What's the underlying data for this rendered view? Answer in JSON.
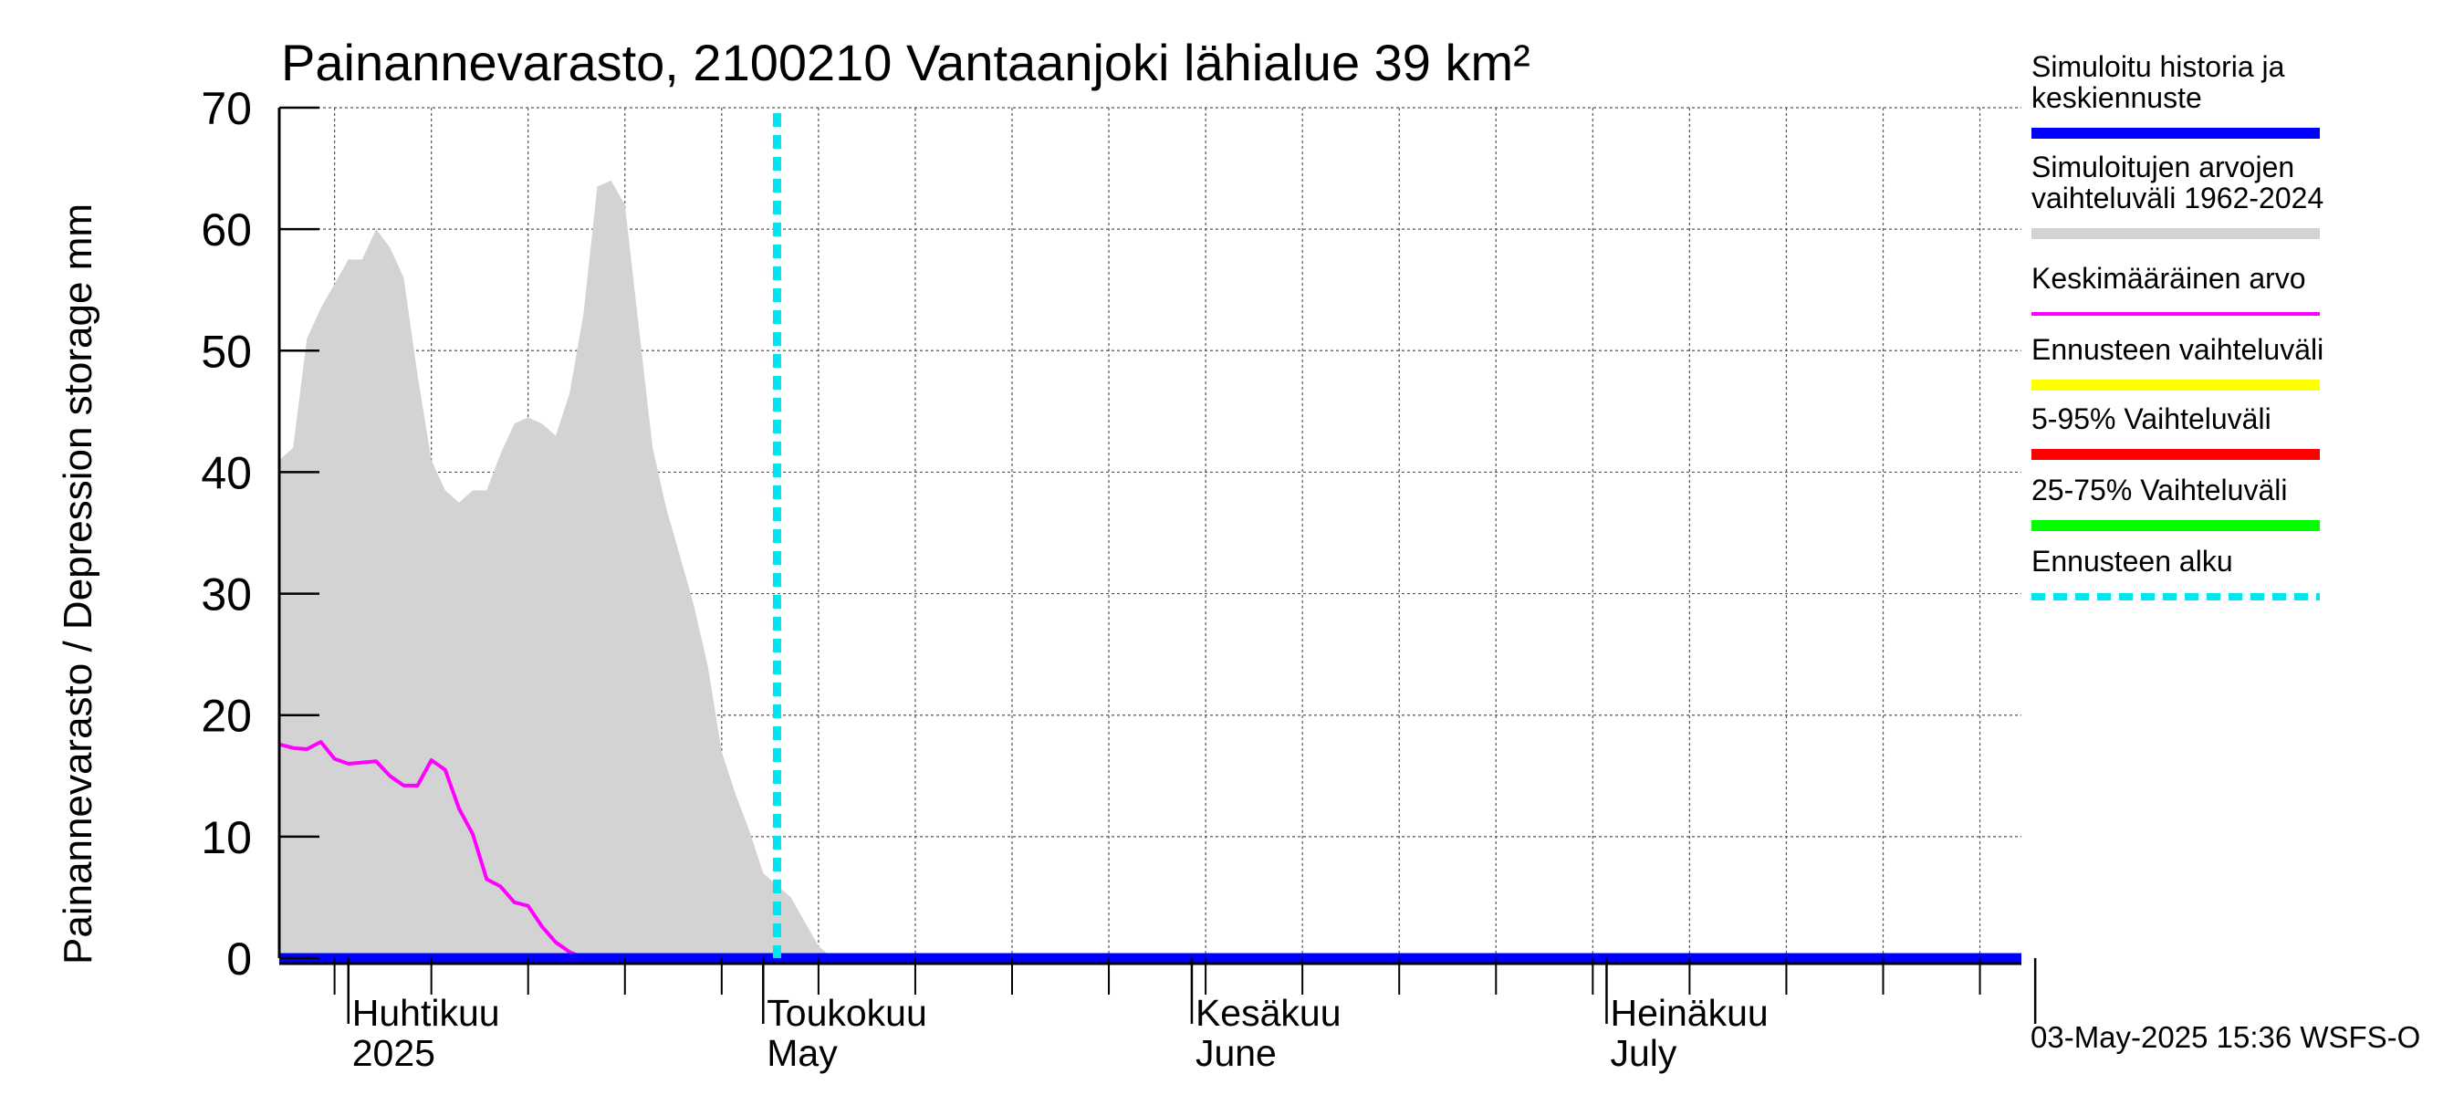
{
  "chart_data": {
    "type": "area",
    "title": "Painannevarasto, 2100210 Vantaanjoki lähialue 39 km²",
    "ylabel": "Painannevarasto / Depression storage    mm",
    "ylim": [
      0,
      70
    ],
    "yticks": [
      0,
      10,
      20,
      30,
      40,
      50,
      60,
      70
    ],
    "grid": true,
    "xlim": [
      "2025-03-27",
      "2025-07-31"
    ],
    "month_labels": [
      {
        "date": "2025-04-01",
        "fi": "Huhtikuu",
        "en": "2025"
      },
      {
        "date": "2025-05-01",
        "fi": "Toukokuu",
        "en": "May"
      },
      {
        "date": "2025-06-01",
        "fi": "Kesäkuu",
        "en": "June"
      },
      {
        "date": "2025-07-01",
        "fi": "Heinäkuu",
        "en": "July"
      }
    ],
    "forecast_start": "2025-05-02",
    "legend_position": "right",
    "legend": [
      {
        "label": "Simuloitu historia ja keskiennuste",
        "color": "#0000ff",
        "style": "solid"
      },
      {
        "label": "Simuloitujen arvojen vaihteluväli 1962-2024",
        "color": "#d3d3d3",
        "style": "solid"
      },
      {
        "label": "Keskimääräinen arvo",
        "color": "#ff00ff",
        "style": "thin"
      },
      {
        "label": "Ennusteen vaihteluväli",
        "color": "#ffff00",
        "style": "solid"
      },
      {
        "label": "5-95% Vaihteluväli",
        "color": "#ff0000",
        "style": "solid"
      },
      {
        "label": "25-75% Vaihteluväli",
        "color": "#00ff00",
        "style": "solid"
      },
      {
        "label": "Ennusteen alku",
        "color": "#00e5ee",
        "style": "dashed"
      }
    ],
    "series": [
      {
        "name": "Simuloitujen arvojen vaihteluväli 1962-2024",
        "kind": "band",
        "color": "#d3d3d3",
        "points": [
          [
            "2025-03-27",
            41
          ],
          [
            "2025-03-28",
            42
          ],
          [
            "2025-03-29",
            51
          ],
          [
            "2025-03-30",
            53.5
          ],
          [
            "2025-03-31",
            55.5
          ],
          [
            "2025-04-01",
            57.5
          ],
          [
            "2025-04-02",
            57.5
          ],
          [
            "2025-04-03",
            60
          ],
          [
            "2025-04-04",
            58.5
          ],
          [
            "2025-04-05",
            56
          ],
          [
            "2025-04-06",
            48
          ],
          [
            "2025-04-07",
            41
          ],
          [
            "2025-04-08",
            38.5
          ],
          [
            "2025-04-09",
            37.5
          ],
          [
            "2025-04-10",
            38.5
          ],
          [
            "2025-04-11",
            38.5
          ],
          [
            "2025-04-12",
            41.5
          ],
          [
            "2025-04-13",
            44
          ],
          [
            "2025-04-14",
            44.5
          ],
          [
            "2025-04-15",
            44
          ],
          [
            "2025-04-16",
            43
          ],
          [
            "2025-04-17",
            46.5
          ],
          [
            "2025-04-18",
            53
          ],
          [
            "2025-04-19",
            63.5
          ],
          [
            "2025-04-20",
            64
          ],
          [
            "2025-04-21",
            62
          ],
          [
            "2025-04-22",
            52
          ],
          [
            "2025-04-23",
            42
          ],
          [
            "2025-04-24",
            37
          ],
          [
            "2025-04-25",
            33
          ],
          [
            "2025-04-26",
            29
          ],
          [
            "2025-04-27",
            24
          ],
          [
            "2025-04-28",
            17
          ],
          [
            "2025-04-29",
            13.5
          ],
          [
            "2025-04-30",
            10.5
          ],
          [
            "2025-05-01",
            7
          ],
          [
            "2025-05-02",
            6
          ],
          [
            "2025-05-03",
            5
          ],
          [
            "2025-05-04",
            3
          ],
          [
            "2025-05-05",
            1
          ],
          [
            "2025-05-06",
            0
          ],
          [
            "2025-07-31",
            0
          ]
        ]
      },
      {
        "name": "Keskimääräinen arvo",
        "kind": "line",
        "color": "#ff00ff",
        "points": [
          [
            "2025-03-27",
            17.6
          ],
          [
            "2025-03-28",
            17.3
          ],
          [
            "2025-03-29",
            17.2
          ],
          [
            "2025-03-30",
            17.8
          ],
          [
            "2025-03-31",
            16.4
          ],
          [
            "2025-04-01",
            16
          ],
          [
            "2025-04-02",
            16.1
          ],
          [
            "2025-04-03",
            16.2
          ],
          [
            "2025-04-04",
            15
          ],
          [
            "2025-04-05",
            14.2
          ],
          [
            "2025-04-06",
            14.2
          ],
          [
            "2025-04-07",
            16.3
          ],
          [
            "2025-04-08",
            15.5
          ],
          [
            "2025-04-09",
            12.3
          ],
          [
            "2025-04-10",
            10.2
          ],
          [
            "2025-04-11",
            6.5
          ],
          [
            "2025-04-12",
            5.9
          ],
          [
            "2025-04-13",
            4.6
          ],
          [
            "2025-04-14",
            4.3
          ],
          [
            "2025-04-15",
            2.6
          ],
          [
            "2025-04-16",
            1.3
          ],
          [
            "2025-04-17",
            0.5
          ],
          [
            "2025-04-18",
            0
          ],
          [
            "2025-07-31",
            0
          ]
        ]
      },
      {
        "name": "Simuloitu historia ja keskiennuste",
        "kind": "line",
        "color": "#0000ff",
        "points": [
          [
            "2025-03-27",
            0
          ],
          [
            "2025-07-31",
            0
          ]
        ]
      }
    ]
  },
  "footer": {
    "timestamp": "03-May-2025 15:36 WSFS-O"
  }
}
